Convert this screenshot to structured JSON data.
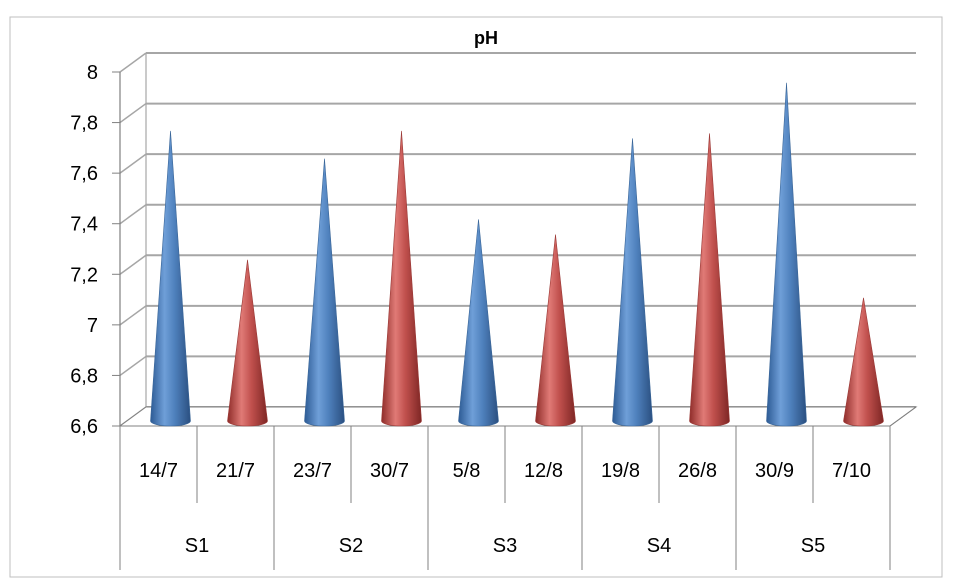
{
  "chart_data": {
    "type": "bar",
    "bar_shape": "cone-3d",
    "title": "pH",
    "xlabel": "",
    "ylabel": "",
    "ylim": [
      6.6,
      8
    ],
    "ytick_step": 0.2,
    "ytick_labels": [
      "6,6",
      "6,8",
      "7",
      "7,2",
      "7,4",
      "7,6",
      "7,8",
      "8"
    ],
    "grid": true,
    "legend": "none",
    "categories": [
      "14/7",
      "21/7",
      "23/7",
      "30/7",
      "5/8",
      "12/8",
      "19/8",
      "26/8",
      "30/9",
      "7/10"
    ],
    "groups": [
      {
        "label": "S1",
        "categories": [
          "14/7",
          "21/7"
        ]
      },
      {
        "label": "S2",
        "categories": [
          "23/7",
          "30/7"
        ]
      },
      {
        "label": "S3",
        "categories": [
          "5/8",
          "12/8"
        ]
      },
      {
        "label": "S4",
        "categories": [
          "19/8",
          "26/8"
        ]
      },
      {
        "label": "S5",
        "categories": [
          "30/9",
          "7/10"
        ]
      }
    ],
    "values": [
      7.7,
      7.19,
      7.59,
      7.7,
      7.35,
      7.29,
      7.67,
      7.69,
      7.89,
      7.04
    ],
    "colors": {
      "first_in_group": "#4F81BD",
      "second_in_group": "#C0504D",
      "grid": "#A6A6A6",
      "frame": "#BFBFBF"
    }
  }
}
